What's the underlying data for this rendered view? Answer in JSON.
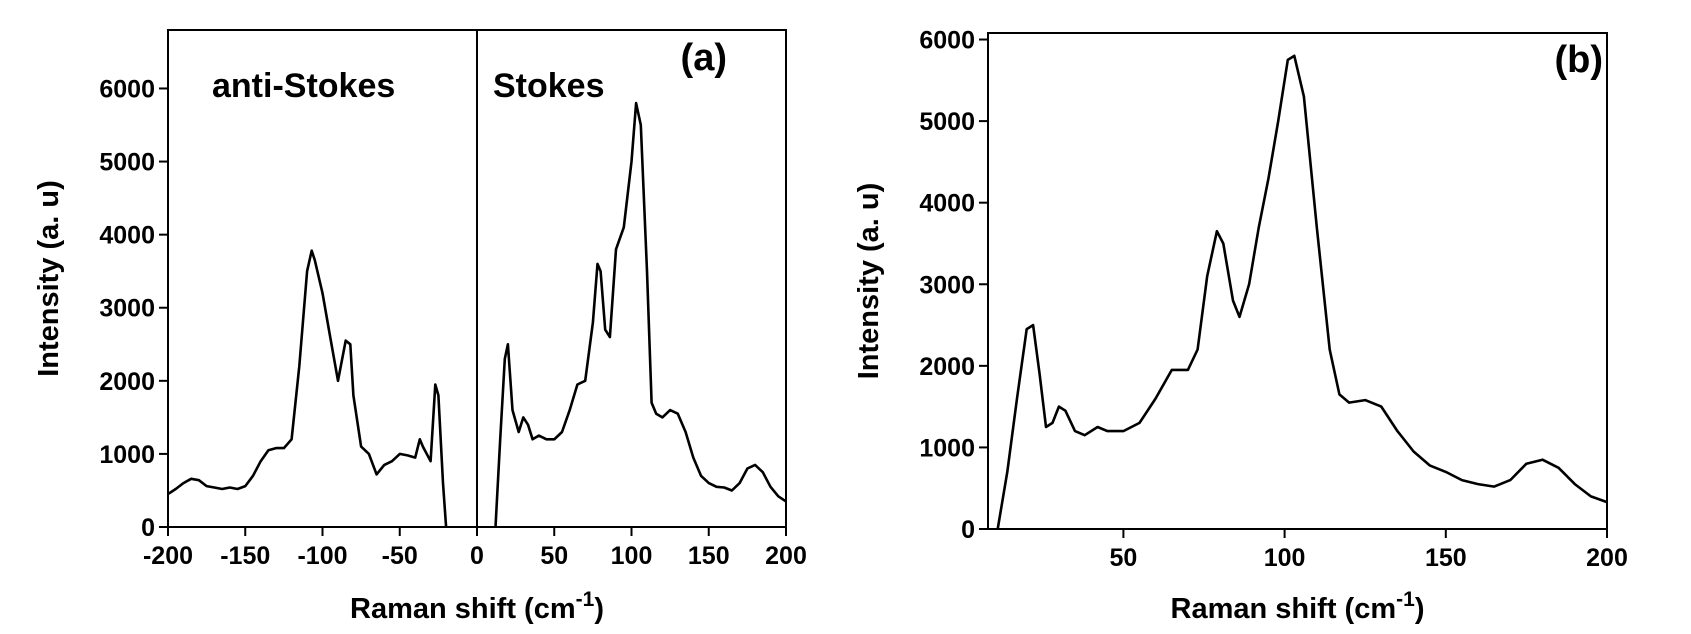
{
  "chart_data": [
    {
      "type": "line",
      "xlabel": [
        "Raman shift (cm",
        "-1",
        ")"
      ],
      "ylabel": "Intensity (a. u)",
      "annotations": [
        "(a)",
        "anti-Stokes",
        "Stokes"
      ],
      "vline": 0,
      "xlim": [
        -200,
        200
      ],
      "ylim": [
        0,
        6800
      ],
      "xticks": [
        -200,
        -150,
        -100,
        -50,
        0,
        50,
        100,
        150,
        200
      ],
      "yticks": [
        0,
        1000,
        2000,
        3000,
        4000,
        5000,
        6000
      ],
      "x": [
        -200,
        -195,
        -190,
        -185,
        -180,
        -175,
        -170,
        -165,
        -160,
        -155,
        -150,
        -145,
        -140,
        -135,
        -130,
        -125,
        -120,
        -115,
        -110,
        -107,
        -105,
        -100,
        -95,
        -90,
        -85,
        -82,
        -80,
        -75,
        -70,
        -65,
        -60,
        -55,
        -50,
        -45,
        -40,
        -37,
        -35,
        -30,
        -27,
        -25,
        -22,
        -20,
        -5,
        12,
        15,
        18,
        20,
        23,
        27,
        30,
        33,
        36,
        40,
        45,
        50,
        55,
        60,
        65,
        70,
        75,
        78,
        80,
        83,
        86,
        90,
        95,
        100,
        103,
        106,
        110,
        113,
        116,
        120,
        125,
        130,
        135,
        140,
        145,
        150,
        155,
        160,
        165,
        170,
        175,
        180,
        185,
        190,
        195,
        200
      ],
      "series": [
        {
          "color": "#000000",
          "values": [
            450,
            520,
            600,
            660,
            640,
            560,
            540,
            520,
            540,
            520,
            560,
            700,
            900,
            1050,
            1080,
            1080,
            1200,
            2200,
            3500,
            3780,
            3650,
            3200,
            2600,
            2000,
            2550,
            2500,
            1800,
            1100,
            1000,
            720,
            850,
            900,
            1000,
            980,
            950,
            1200,
            1100,
            900,
            1950,
            1800,
            600,
            0,
            null,
            0,
            1200,
            2300,
            2500,
            1600,
            1300,
            1500,
            1400,
            1200,
            1250,
            1200,
            1200,
            1300,
            1600,
            1950,
            2000,
            2800,
            3600,
            3500,
            2700,
            2600,
            3800,
            4100,
            5000,
            5800,
            5500,
            3500,
            1700,
            1550,
            1500,
            1600,
            1550,
            1300,
            950,
            700,
            600,
            550,
            540,
            500,
            600,
            800,
            850,
            750,
            550,
            420,
            350
          ]
        }
      ]
    },
    {
      "type": "line",
      "xlabel": [
        "Raman shift (cm",
        "-1",
        ")"
      ],
      "ylabel": "Intensity (a. u)",
      "annotations": [
        "(b)"
      ],
      "xlim": [
        8,
        200
      ],
      "ylim": [
        0,
        6080
      ],
      "xticks": [
        50,
        100,
        150,
        200
      ],
      "yticks": [
        0,
        1000,
        2000,
        3000,
        4000,
        5000,
        6000
      ],
      "x": [
        11,
        14,
        17,
        20,
        22,
        24,
        26,
        28,
        30,
        32,
        35,
        38,
        42,
        45,
        50,
        55,
        60,
        65,
        70,
        73,
        76,
        79,
        81,
        84,
        86,
        89,
        92,
        95,
        98,
        101,
        103,
        106,
        110,
        114,
        117,
        120,
        125,
        130,
        135,
        140,
        145,
        150,
        155,
        160,
        165,
        170,
        175,
        180,
        185,
        190,
        195,
        200
      ],
      "series": [
        {
          "color": "#000000",
          "values": [
            0,
            700,
            1600,
            2450,
            2500,
            1900,
            1250,
            1300,
            1500,
            1450,
            1200,
            1150,
            1250,
            1200,
            1200,
            1300,
            1600,
            1950,
            1950,
            2200,
            3100,
            3650,
            3500,
            2800,
            2600,
            3000,
            3700,
            4300,
            5000,
            5750,
            5800,
            5300,
            3700,
            2200,
            1650,
            1550,
            1580,
            1500,
            1200,
            950,
            780,
            700,
            600,
            550,
            520,
            600,
            800,
            850,
            750,
            550,
            400,
            330
          ]
        }
      ]
    }
  ]
}
